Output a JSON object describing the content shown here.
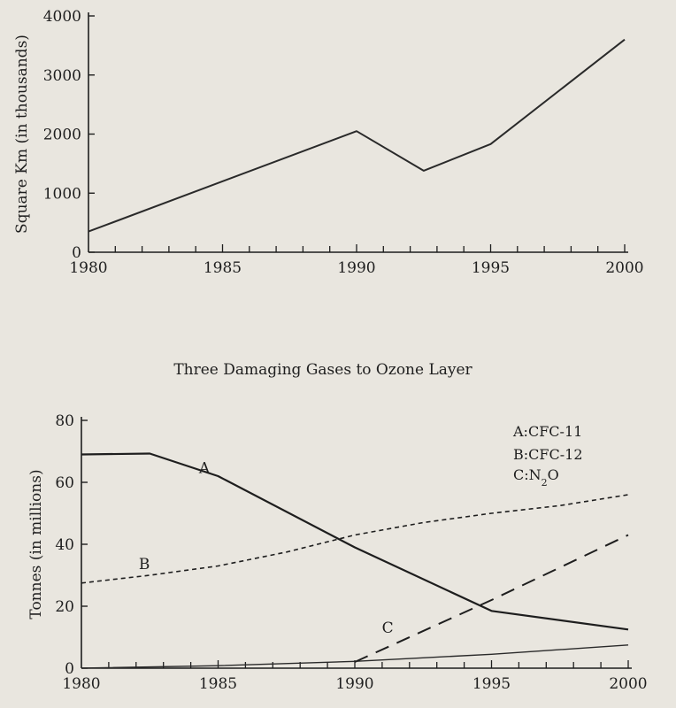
{
  "between_title": "Three Damaging Gases to Ozone Layer",
  "chart_data": [
    {
      "type": "line",
      "title": "",
      "xlabel": "",
      "ylabel": "Square Km (in thousands)",
      "xlim": [
        1980,
        2000
      ],
      "ylim": [
        0,
        4000
      ],
      "x_ticks": [
        1980,
        1985,
        1990,
        1995,
        2000
      ],
      "y_ticks": [
        0,
        1000,
        2000,
        3000,
        4000
      ],
      "grid": false,
      "legend": "none",
      "series": [
        {
          "x": [
            1980,
            1990,
            1992.5,
            1995,
            2000
          ],
          "y": [
            350,
            2050,
            1380,
            1830,
            3600
          ],
          "style": "solid"
        }
      ]
    },
    {
      "type": "line",
      "title": "",
      "xlabel": "",
      "ylabel": "Tonnes (in millions)",
      "xlim": [
        1980,
        2000
      ],
      "ylim": [
        0,
        80
      ],
      "x_ticks": [
        1980,
        1985,
        1990,
        1995,
        2000
      ],
      "y_ticks": [
        0,
        20,
        40,
        60,
        80
      ],
      "grid": false,
      "legend": "top-right",
      "legend_entries": [
        {
          "key": "A",
          "text": "CFC-11"
        },
        {
          "key": "B",
          "text": "CFC-12"
        },
        {
          "key": "C",
          "text": "N",
          "sub": "2",
          "tail": "O"
        }
      ],
      "series": [
        {
          "label": "A",
          "style": "solid",
          "label_at": [
            1984.5,
            63
          ],
          "x": [
            1980,
            1982.5,
            1985,
            1990,
            1995,
            2000
          ],
          "y": [
            69,
            69.3,
            62,
            39,
            18.5,
            12.5
          ]
        },
        {
          "label": "B",
          "style": "dotted",
          "label_at": [
            1982.3,
            32
          ],
          "x": [
            1980,
            1982.5,
            1985,
            1987.5,
            1990,
            1992.5,
            1995,
            1997.5,
            2000
          ],
          "y": [
            27.5,
            30,
            33,
            37.5,
            43,
            47,
            50,
            52.5,
            56
          ]
        },
        {
          "label": "C",
          "style": "dashed",
          "label_at": [
            1991.2,
            11.5
          ],
          "x": [
            1990,
            1995,
            2000
          ],
          "y": [
            2,
            22,
            43
          ]
        }
      ],
      "baseline_curve": {
        "x": [
          1980,
          1985,
          1990,
          1995,
          2000
        ],
        "y": [
          0,
          0.8,
          2.2,
          4.5,
          7.5
        ]
      }
    }
  ]
}
